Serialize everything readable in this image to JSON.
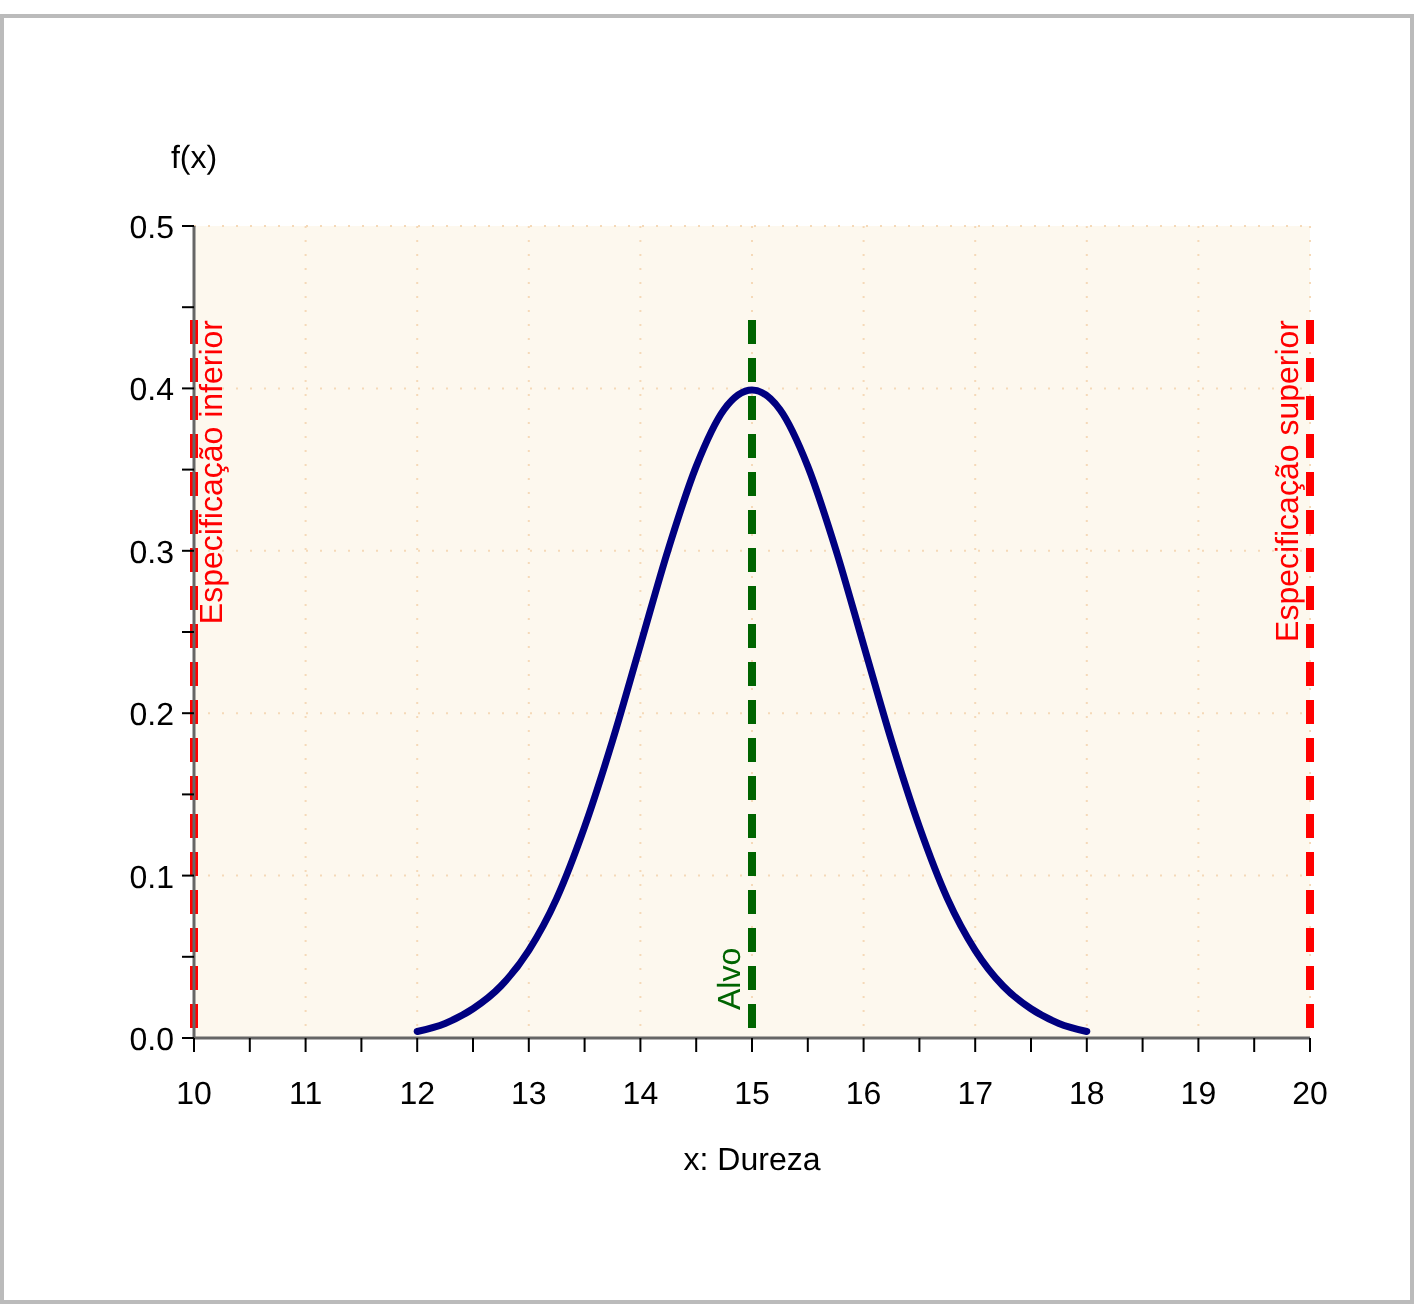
{
  "chart_data": {
    "type": "line",
    "xlabel": "x: Dureza",
    "ylabel": "f(x)",
    "x": [
      12,
      12.25,
      12.5,
      12.75,
      13,
      13.25,
      13.5,
      13.75,
      14,
      14.25,
      14.5,
      14.75,
      15,
      15.25,
      15.5,
      15.75,
      16,
      16.25,
      16.5,
      16.75,
      17,
      17.25,
      17.5,
      17.75,
      18
    ],
    "series": [
      {
        "color": "#000080",
        "values": [
          0.004,
          0.009,
          0.018,
          0.032,
          0.054,
          0.086,
          0.13,
          0.183,
          0.242,
          0.301,
          0.352,
          0.387,
          0.399,
          0.387,
          0.352,
          0.301,
          0.242,
          0.183,
          0.13,
          0.086,
          0.054,
          0.032,
          0.018,
          0.009,
          0.004
        ]
      }
    ],
    "xlim": [
      10,
      20
    ],
    "ylim": [
      0,
      0.5
    ],
    "xticks": [
      10,
      {
        "value": 10.5,
        "label": null
      },
      11,
      {
        "value": 11.5,
        "label": null
      },
      12,
      {
        "value": 12.5,
        "label": null
      },
      13,
      {
        "value": 13.5,
        "label": null
      },
      14,
      {
        "value": 14.5,
        "label": null
      },
      15,
      {
        "value": 15.5,
        "label": null
      },
      16,
      {
        "value": 16.5,
        "label": null
      },
      17,
      {
        "value": 17.5,
        "label": null
      },
      18,
      {
        "value": 18.5,
        "label": null
      },
      19,
      {
        "value": 19.5,
        "label": null
      },
      20
    ],
    "yticks": [
      {
        "value": 0,
        "label": "0.0"
      },
      {
        "value": 0.05,
        "label": null
      },
      0.1,
      {
        "value": 0.15,
        "label": null
      },
      0.2,
      {
        "value": 0.25,
        "label": null
      },
      0.3,
      {
        "value": 0.35,
        "label": null
      },
      0.4,
      {
        "value": 0.45,
        "label": null
      },
      0.5
    ],
    "ref_lines": [
      {
        "axis": "x",
        "value": 10,
        "label": "Especificação inferior",
        "color": "#ff0000",
        "line_style": "dashed"
      },
      {
        "axis": "x",
        "value": 20,
        "label": "Especificação superior",
        "color": "#ff0000",
        "line_style": "dashed"
      },
      {
        "axis": "x",
        "value": 15,
        "label": "Alvo",
        "color": "#006400",
        "line_style": "dashed"
      }
    ],
    "grid": true,
    "marker": "none",
    "line_style": "solid"
  }
}
